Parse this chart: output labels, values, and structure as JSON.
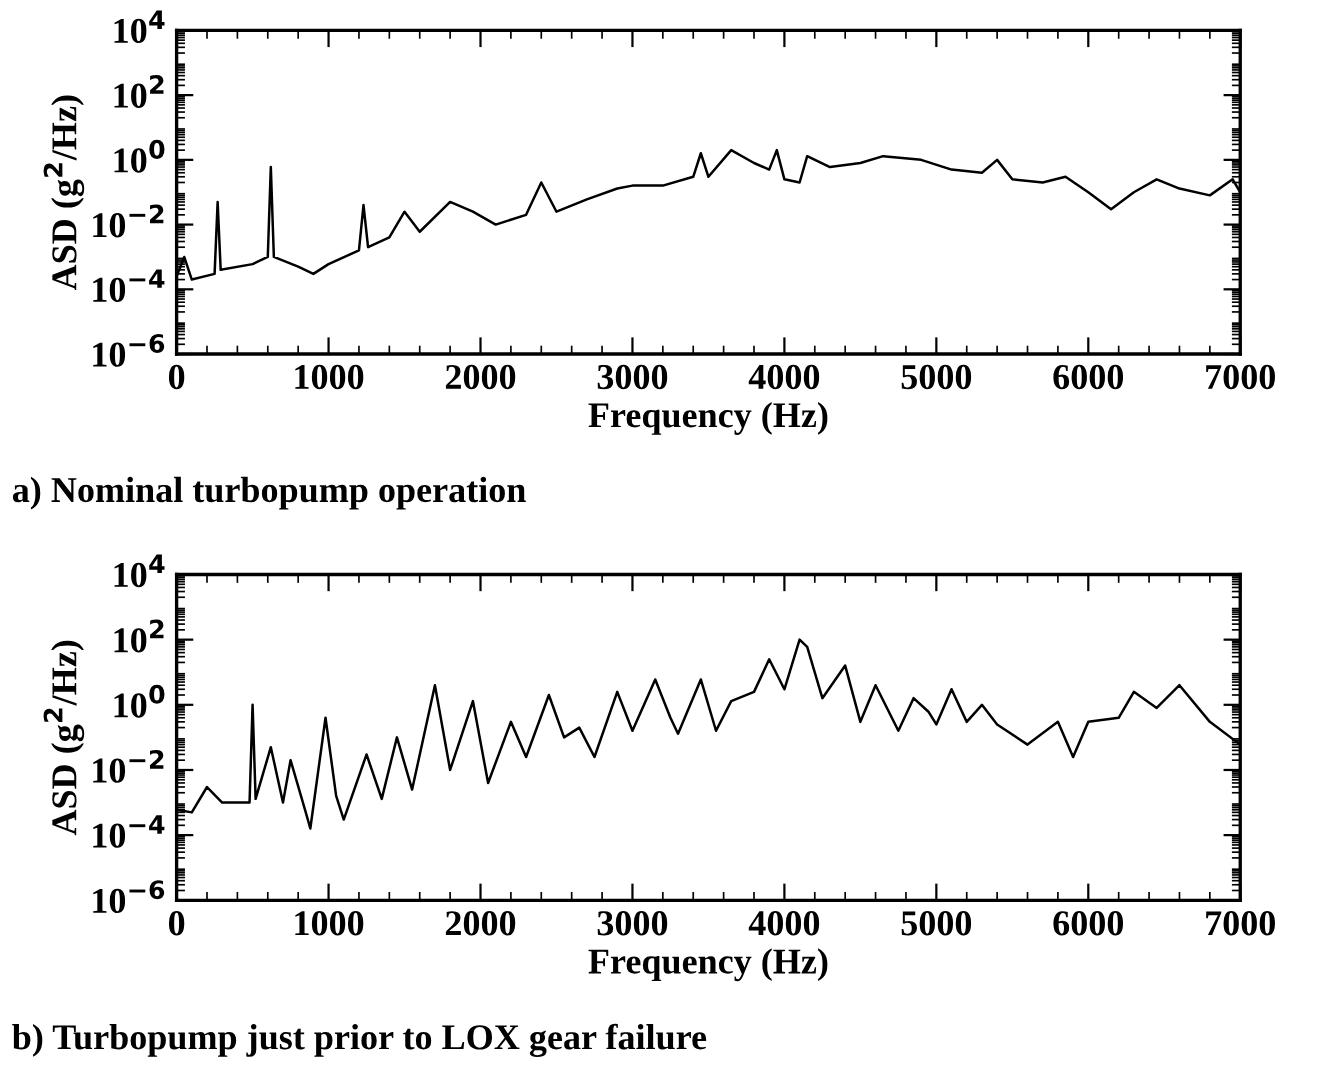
{
  "chart_data": [
    {
      "type": "line",
      "title": "a) Nominal turbopump operation",
      "xlabel": "Frequency (Hz)",
      "ylabel": "ASD (g$^{2}$/Hz)",
      "log": "y",
      "xlim": [
        0,
        7000
      ],
      "xticks": [
        0,
        1000,
        2000,
        3000,
        4000,
        5000,
        6000,
        7000
      ],
      "ylim": [
        1e-06,
        10000
      ],
      "yticks": [
        {
          "value": 1e-06,
          "label": "10$^{−6}$"
        },
        {
          "value": 0.0001,
          "label": "10$^{−4}$"
        },
        {
          "value": 0.01,
          "label": "10$^{−2}$"
        },
        {
          "value": 1,
          "label": "10$^{0}$"
        },
        {
          "value": 100,
          "label": "10$^{2}$"
        },
        {
          "value": 10000,
          "label": "10$^{4}$"
        }
      ],
      "series": [
        {
          "color": "#000000",
          "x": [
            0,
            50,
            100,
            250,
            270,
            290,
            500,
            600,
            620,
            640,
            800,
            900,
            1000,
            1200,
            1230,
            1260,
            1400,
            1500,
            1600,
            1800,
            1950,
            2100,
            2300,
            2400,
            2500,
            2700,
            2900,
            3000,
            3200,
            3400,
            3450,
            3500,
            3650,
            3800,
            3900,
            3950,
            4000,
            4100,
            4150,
            4300,
            4500,
            4650,
            4900,
            5100,
            5300,
            5400,
            5500,
            5700,
            5850,
            6000,
            6150,
            6300,
            6450,
            6600,
            6800,
            6950,
            7000
          ],
          "values": [
            0.00025,
            0.001,
            0.0002,
            0.0003,
            0.05,
            0.0004,
            0.0006,
            0.001,
            0.6,
            0.001,
            0.0005,
            0.0003,
            0.0006,
            0.0016,
            0.04,
            0.002,
            0.004,
            0.025,
            0.006,
            0.05,
            0.025,
            0.01,
            0.02,
            0.2,
            0.025,
            0.06,
            0.13,
            0.16,
            0.16,
            0.3,
            1.6,
            0.3,
            2,
            0.8,
            0.5,
            2,
            0.25,
            0.2,
            1.3,
            0.6,
            0.8,
            1.3,
            1,
            0.5,
            0.4,
            1,
            0.25,
            0.2,
            0.3,
            0.1,
            0.03,
            0.1,
            0.25,
            0.13,
            0.08,
            0.25,
            0.1
          ]
        }
      ]
    },
    {
      "type": "line",
      "title": "b) Turbopump just prior to LOX gear failure",
      "xlabel": "Frequency (Hz)",
      "ylabel": "ASD (g$^{2}$/Hz)",
      "log": "y",
      "xlim": [
        0,
        7000
      ],
      "xticks": [
        0,
        1000,
        2000,
        3000,
        4000,
        5000,
        6000,
        7000
      ],
      "ylim": [
        1e-06,
        10000
      ],
      "yticks": [
        {
          "value": 1e-06,
          "label": "10$^{−6}$"
        },
        {
          "value": 0.0001,
          "label": "10$^{−4}$"
        },
        {
          "value": 0.01,
          "label": "10$^{−2}$"
        },
        {
          "value": 1,
          "label": "10$^{0}$"
        },
        {
          "value": 100,
          "label": "10$^{2}$"
        },
        {
          "value": 10000,
          "label": "10$^{4}$"
        }
      ],
      "series": [
        {
          "color": "#000000",
          "x": [
            0,
            100,
            200,
            300,
            480,
            500,
            520,
            620,
            700,
            750,
            850,
            880,
            980,
            1050,
            1100,
            1250,
            1350,
            1450,
            1550,
            1700,
            1800,
            1950,
            2050,
            2200,
            2300,
            2450,
            2550,
            2650,
            2750,
            2900,
            3000,
            3150,
            3250,
            3300,
            3450,
            3550,
            3650,
            3800,
            3900,
            4000,
            4100,
            4150,
            4250,
            4400,
            4500,
            4600,
            4750,
            4850,
            4950,
            5000,
            5100,
            5200,
            5300,
            5400,
            5600,
            5800,
            5900,
            6000,
            6200,
            6300,
            6450,
            6600,
            6800,
            7000
          ],
          "values": [
            0.0006,
            0.0005,
            0.003,
            0.001,
            0.001,
            1,
            0.0013,
            0.05,
            0.001,
            0.02,
            0.0005,
            0.00016,
            0.4,
            0.0016,
            0.0003,
            0.03,
            0.0013,
            0.1,
            0.0025,
            4,
            0.01,
            1.3,
            0.004,
            0.3,
            0.025,
            2,
            0.1,
            0.2,
            0.025,
            2.5,
            0.16,
            6,
            0.4,
            0.13,
            6,
            0.16,
            1.3,
            2.5,
            25,
            3,
            100,
            60,
            1.6,
            16,
            0.3,
            4,
            0.16,
            1.6,
            0.6,
            0.25,
            3,
            0.3,
            1,
            0.25,
            0.06,
            0.3,
            0.025,
            0.3,
            0.4,
            2.5,
            0.8,
            4,
            0.3,
            0.06
          ]
        }
      ]
    }
  ]
}
